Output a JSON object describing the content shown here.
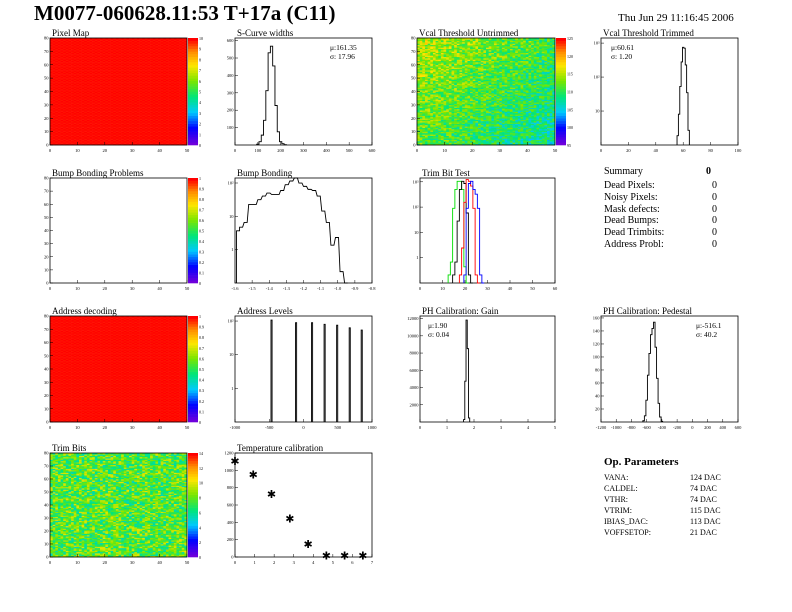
{
  "header": {
    "title": "M0077-060628.11:53 T+17a (C11)",
    "date": "Thu Jun 29 11:16:45 2006"
  },
  "summary": {
    "title": "Summary",
    "total": "0",
    "rows": [
      {
        "label": "Dead Pixels:",
        "value": "0"
      },
      {
        "label": "Noisy Pixels:",
        "value": "0"
      },
      {
        "label": "Mask defects:",
        "value": "0"
      },
      {
        "label": "Dead Bumps:",
        "value": "0"
      },
      {
        "label": "Dead Trimbits:",
        "value": "0"
      },
      {
        "label": "Address Probl:",
        "value": "0"
      }
    ]
  },
  "op_params": {
    "title": "Op. Parameters",
    "rows": [
      {
        "label": "VANA:",
        "value": "124 DAC"
      },
      {
        "label": "CALDEL:",
        "value": "74 DAC"
      },
      {
        "label": "VTHR:",
        "value": "74 DAC"
      },
      {
        "label": "VTRIM:",
        "value": "115 DAC"
      },
      {
        "label": "IBIAS_DAC:",
        "value": "113 DAC"
      },
      {
        "label": "VOFFSETOP:",
        "value": "21 DAC"
      }
    ]
  },
  "chart_data": [
    {
      "id": "pixel-map",
      "type": "heatmap",
      "title": "Pixel Map",
      "xlim": [
        0,
        52
      ],
      "ylim": [
        0,
        80
      ],
      "xticks": [
        "0",
        "10",
        "20",
        "30",
        "40",
        "50"
      ],
      "yticks": [
        "0",
        "10",
        "20",
        "30",
        "40",
        "50",
        "60",
        "70",
        "80"
      ],
      "zlim": [
        0,
        10
      ],
      "zticks": [
        "0",
        "1",
        "2",
        "3",
        "4",
        "5",
        "6",
        "7",
        "8",
        "9",
        "10"
      ],
      "pattern": "uniform-max"
    },
    {
      "id": "s-curve-widths",
      "type": "bar",
      "title": "S-Curve widths",
      "xlim": [
        0,
        600
      ],
      "ylim": [
        0,
        650
      ],
      "xticks": [
        "0",
        "100",
        "200",
        "300",
        "400",
        "500",
        "600"
      ],
      "yticks": [
        "100",
        "200",
        "300",
        "400",
        "500",
        "600"
      ],
      "stats": [
        "μ:161.35",
        "σ: 17.96"
      ],
      "x": [
        100,
        110,
        120,
        130,
        140,
        150,
        160,
        170,
        180,
        190,
        200,
        210,
        220
      ],
      "values": [
        5,
        20,
        60,
        150,
        330,
        560,
        600,
        480,
        240,
        80,
        20,
        8,
        2
      ],
      "color": "#000000"
    },
    {
      "id": "vcal-threshold-untrimmed",
      "type": "heatmap",
      "title": "Vcal Threshold Untrimmed",
      "xlim": [
        0,
        52
      ],
      "ylim": [
        0,
        80
      ],
      "xticks": [
        "0",
        "10",
        "20",
        "30",
        "40",
        "50"
      ],
      "yticks": [
        "0",
        "10",
        "20",
        "30",
        "40",
        "50",
        "60",
        "70",
        "80"
      ],
      "zlim": [
        95,
        125
      ],
      "zticks": [
        "95",
        "100",
        "105",
        "110",
        "115",
        "120",
        "125"
      ],
      "pattern": "noisy-gradient"
    },
    {
      "id": "vcal-threshold-trimmed",
      "type": "bar",
      "title": "Vcal Threshold Trimmed",
      "log": true,
      "xlim": [
        0,
        100
      ],
      "ylim": [
        1,
        3000
      ],
      "xticks": [
        "0",
        "20",
        "40",
        "60",
        "80",
        "100"
      ],
      "yticks": [
        "10",
        "10²",
        "10³"
      ],
      "stats": [
        "μ:60.61",
        "σ: 1.20"
      ],
      "x": [
        56,
        57,
        58,
        59,
        60,
        61,
        62,
        63,
        64
      ],
      "values": [
        2,
        10,
        80,
        500,
        1500,
        1400,
        400,
        50,
        3
      ],
      "color": "#000000"
    },
    {
      "id": "bump-bonding-problems",
      "type": "heatmap",
      "title": "Bump Bonding Problems",
      "xlim": [
        0,
        52
      ],
      "ylim": [
        0,
        80
      ],
      "xticks": [
        "0",
        "10",
        "20",
        "30",
        "40",
        "50"
      ],
      "yticks": [
        "0",
        "10",
        "20",
        "30",
        "40",
        "50",
        "60",
        "70",
        "80"
      ],
      "zlim": [
        0,
        1
      ],
      "zticks": [
        "0",
        "0.1",
        "0.2",
        "0.3",
        "0.4",
        "0.5",
        "0.6",
        "0.7",
        "0.8",
        "0.9",
        "1"
      ],
      "pattern": "empty"
    },
    {
      "id": "bump-bonding",
      "type": "bar",
      "title": "Bump Bonding",
      "log": true,
      "xlim": [
        -1.6,
        -0.7
      ],
      "ylim": [
        0.5,
        300
      ],
      "xticks": [
        "-1.6",
        "-1.5",
        "-1.4",
        "-1.3",
        "-1.2",
        "-1.1",
        "-1.0",
        "-0.9",
        "-0.8"
      ],
      "yticks": [
        "1",
        "10",
        "10²"
      ],
      "x": [
        -1.58,
        -1.56,
        -1.53,
        -1.5,
        -1.47,
        -1.44,
        -1.41,
        -1.38,
        -1.35,
        -1.32,
        -1.29,
        -1.26,
        -1.23,
        -1.2,
        -1.17,
        -1.14,
        -1.11,
        -1.08,
        -1.05,
        -1.02,
        -0.99,
        -0.96,
        -0.93,
        -0.9,
        -0.87
      ],
      "values": [
        12,
        15,
        20,
        60,
        60,
        80,
        100,
        120,
        110,
        110,
        140,
        200,
        250,
        300,
        220,
        180,
        150,
        140,
        100,
        40,
        20,
        5,
        8,
        1,
        0.5
      ],
      "color": "#000000"
    },
    {
      "id": "trim-bit-test",
      "type": "line",
      "title": "Trim Bit Test",
      "log": true,
      "xlim": [
        0,
        60
      ],
      "ylim": [
        0.5,
        4000
      ],
      "xticks": [
        "0",
        "10",
        "20",
        "30",
        "40",
        "50",
        "60"
      ],
      "yticks": [
        "1",
        "10",
        "10²",
        "10³"
      ],
      "series": [
        {
          "color": "#00dd00",
          "x": [
            13,
            14,
            15,
            16,
            17,
            18,
            19,
            20,
            21
          ],
          "values": [
            1,
            3,
            300,
            1500,
            3000,
            3000,
            1500,
            2,
            0.5
          ]
        },
        {
          "color": "#000000",
          "x": [
            15,
            16,
            17,
            18,
            19,
            20,
            21,
            22,
            23
          ],
          "values": [
            1,
            3,
            100,
            1500,
            3000,
            2500,
            200,
            1,
            0.5
          ]
        },
        {
          "color": "#ff0000",
          "x": [
            18,
            19,
            20,
            21,
            22,
            23,
            24,
            25,
            26
          ],
          "values": [
            1,
            10,
            500,
            3500,
            3000,
            2000,
            300,
            1,
            0.5
          ]
        },
        {
          "color": "#0000ff",
          "x": [
            20,
            21,
            22,
            23,
            24,
            25,
            26,
            27,
            28
          ],
          "values": [
            1,
            300,
            2500,
            3000,
            1500,
            1000,
            300,
            1,
            0.5
          ]
        }
      ]
    },
    {
      "id": "address-decoding",
      "type": "heatmap",
      "title": "Address decoding",
      "xlim": [
        0,
        52
      ],
      "ylim": [
        0,
        80
      ],
      "xticks": [
        "0",
        "10",
        "20",
        "30",
        "40",
        "50"
      ],
      "yticks": [
        "0",
        "10",
        "20",
        "30",
        "40",
        "50",
        "60",
        "70",
        "80"
      ],
      "zlim": [
        0,
        1
      ],
      "zticks": [
        "0",
        "0.1",
        "0.2",
        "0.3",
        "0.4",
        "0.5",
        "0.6",
        "0.7",
        "0.8",
        "0.9",
        "1"
      ],
      "pattern": "uniform-max"
    },
    {
      "id": "address-levels",
      "type": "bar",
      "title": "Address Levels",
      "log": true,
      "xlim": [
        -1400,
        1000
      ],
      "ylim": [
        0.5,
        800
      ],
      "xticks": [
        "-1000",
        "-500",
        "0",
        "500",
        "1000"
      ],
      "yticks": [
        "1",
        "10",
        "10²"
      ],
      "x": [
        -760,
        -330,
        -50,
        170,
        390,
        610,
        820
      ],
      "values": [
        600,
        500,
        500,
        450,
        420,
        350,
        300
      ],
      "color": "#000000"
    },
    {
      "id": "ph-calibration-gain",
      "type": "bar",
      "title": "PH Calibration: Gain",
      "xlim": [
        0,
        5.5
      ],
      "ylim": [
        0,
        13000
      ],
      "xticks": [
        "0",
        "1",
        "2",
        "3",
        "4",
        "5"
      ],
      "yticks": [
        "2000",
        "4000",
        "6000",
        "8000",
        "10000",
        "12000"
      ],
      "stats": [
        "μ:1.90",
        "σ: 0.04"
      ],
      "x": [
        1.8,
        1.85,
        1.9,
        1.95,
        2.0
      ],
      "values": [
        300,
        5000,
        12500,
        9000,
        500
      ],
      "color": "#000000"
    },
    {
      "id": "ph-calibration-pedestal",
      "type": "bar",
      "title": "PH Calibration: Pedestal",
      "xlim": [
        -1200,
        600
      ],
      "ylim": [
        0,
        170
      ],
      "xticks": [
        "-1200",
        "-1000",
        "-800",
        "-600",
        "-400",
        "-200",
        "0",
        "200",
        "400",
        "600"
      ],
      "yticks": [
        "20",
        "40",
        "60",
        "80",
        "100",
        "120",
        "140",
        "160"
      ],
      "stats": [
        "μ:-516.1",
        "σ: 40.2"
      ],
      "x": [
        -640,
        -620,
        -600,
        -580,
        -560,
        -540,
        -520,
        -500,
        -480,
        -460,
        -440,
        -420,
        -400
      ],
      "values": [
        2,
        10,
        35,
        75,
        110,
        140,
        150,
        160,
        120,
        70,
        30,
        8,
        1
      ],
      "color": "#000000"
    },
    {
      "id": "trim-bits",
      "type": "heatmap",
      "title": "Trim Bits",
      "xlim": [
        0,
        52
      ],
      "ylim": [
        0,
        80
      ],
      "xticks": [
        "0",
        "10",
        "20",
        "30",
        "40",
        "50"
      ],
      "yticks": [
        "0",
        "10",
        "20",
        "30",
        "40",
        "50",
        "60",
        "70",
        "80"
      ],
      "zlim": [
        0,
        15
      ],
      "zticks": [
        "0",
        "2",
        "4",
        "6",
        "8",
        "10",
        "12",
        "14"
      ],
      "pattern": "noisy-mid"
    },
    {
      "id": "temperature-calibration",
      "type": "scatter",
      "title": "Temperature calibration",
      "xlim": [
        0,
        7.5
      ],
      "ylim": [
        0,
        1300
      ],
      "xticks": [
        "0",
        "1",
        "2",
        "3",
        "4",
        "5",
        "6",
        "7"
      ],
      "yticks": [
        "0",
        "200",
        "400",
        "600",
        "800",
        "1000",
        "1200"
      ],
      "x": [
        0,
        1,
        2,
        3,
        4,
        5,
        6,
        7
      ],
      "values": [
        1200,
        1030,
        790,
        480,
        160,
        20,
        20,
        20
      ],
      "marker": "star"
    }
  ]
}
